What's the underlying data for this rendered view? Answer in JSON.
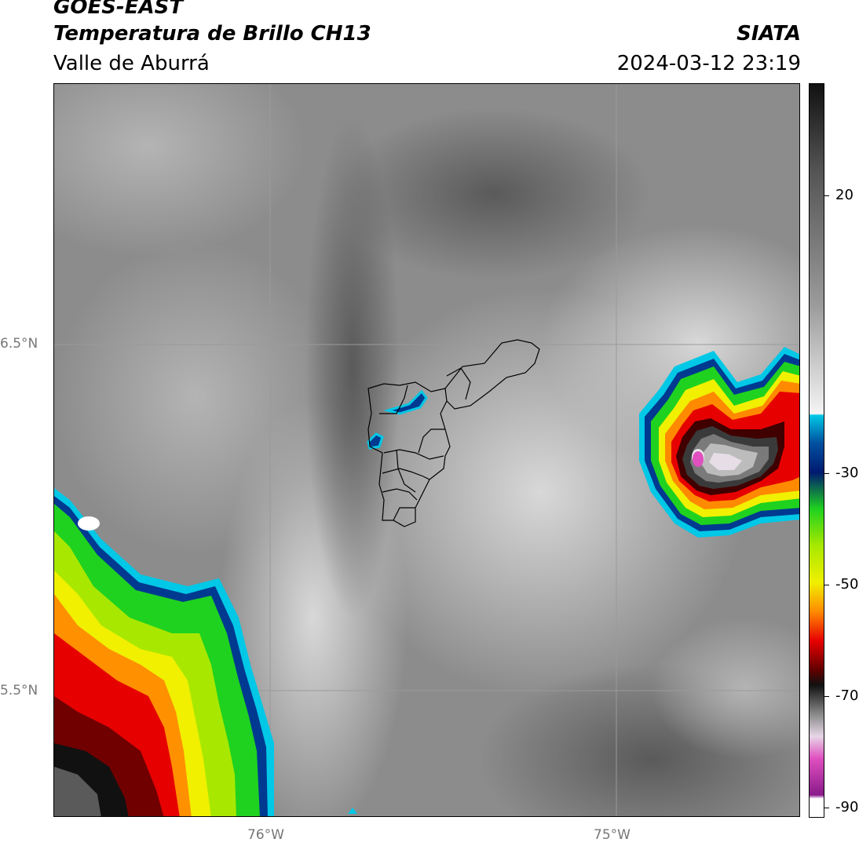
{
  "header": {
    "satellite": "GOES-EAST",
    "product": "Temperatura de Brillo CH13",
    "region": "Valle de Aburrá",
    "organization": "SIATA",
    "timestamp": "2024-03-12 23:19"
  },
  "map": {
    "lat_labels": [
      "6.5°N",
      "5.5°N"
    ],
    "lon_labels": [
      "76°W",
      "75°W"
    ]
  },
  "colorbar": {
    "labels": [
      "20",
      "-30",
      "-50",
      "-70",
      "-90"
    ],
    "colors": {
      "gray_light": "#eeeeee",
      "gray_dark": "#555555",
      "cyan": "#00c8e6",
      "blue": "#0050a0",
      "navy": "#001a70",
      "green": "#1fd21f",
      "yellow": "#f0f000",
      "orange": "#ff8a00",
      "red": "#e60000",
      "darkred": "#600000",
      "black": "#111111",
      "pink": "#e050c0",
      "purple": "#8a1a8a"
    }
  }
}
